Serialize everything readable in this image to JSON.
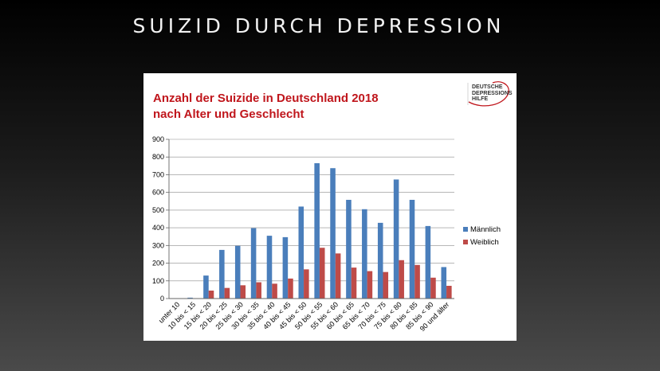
{
  "slide": {
    "title": "SUIZID DURCH DEPRESSION"
  },
  "logo": {
    "lines": [
      "DEUTSCHE",
      "DEPRESSIONS",
      "HILFE"
    ]
  },
  "chart_data": {
    "type": "bar",
    "title_lines": [
      "Anzahl der Suizide in Deutschland 2018",
      "nach Alter und Geschlecht"
    ],
    "categories": [
      "unter 10",
      "10 bis < 15",
      "15 bis < 20",
      "20 bis < 25",
      "25 bis < 30",
      "30 bis < 35",
      "35 bis < 40",
      "40 bis < 45",
      "45 bis < 50",
      "50 bis < 55",
      "55 bis < 60",
      "60 bis < 65",
      "65 bis < 70",
      "70 bis < 75",
      "75 bis < 80",
      "80 bis < 85",
      "85 bis < 90",
      "90 und älter"
    ],
    "series": [
      {
        "name": "Männlich",
        "color": "#4a7ebb",
        "values": [
          0,
          5,
          130,
          275,
          298,
          398,
          355,
          347,
          520,
          765,
          737,
          558,
          505,
          428,
          673,
          558,
          410,
          178
        ]
      },
      {
        "name": "Weiblich",
        "color": "#be4b48",
        "values": [
          0,
          2,
          45,
          60,
          75,
          92,
          84,
          113,
          165,
          287,
          255,
          175,
          155,
          150,
          217,
          190,
          118,
          72
        ]
      }
    ],
    "ylim": [
      0,
      900
    ],
    "yticks": [
      0,
      100,
      200,
      300,
      400,
      500,
      600,
      700,
      800,
      900
    ],
    "grid": true,
    "legend_position": "right"
  }
}
